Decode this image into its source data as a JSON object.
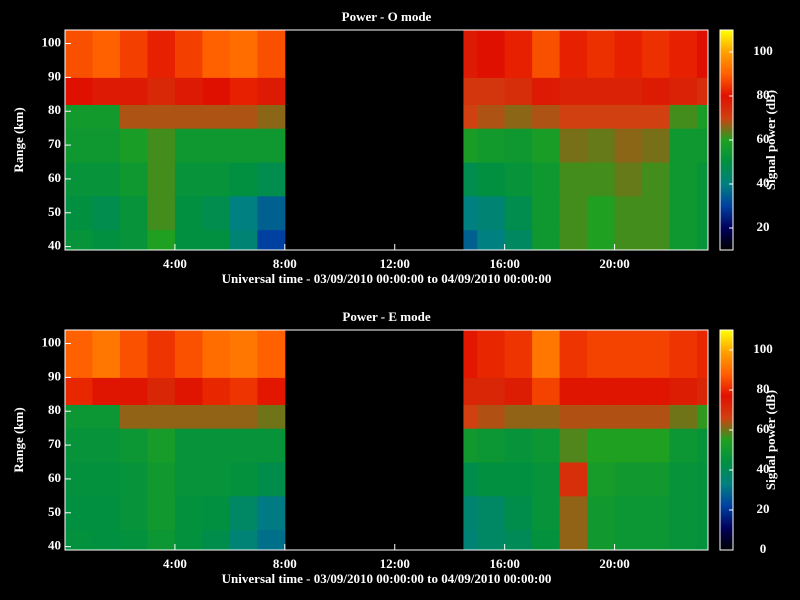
{
  "chart_data": [
    {
      "type": "heatmap",
      "title": "Power - O mode",
      "xlabel": "Universal time - 03/09/2010 00:00:00 to 04/09/2010 00:00:00",
      "ylabel": "Range (km)",
      "colorbar_label": "Signal power (dB)",
      "x_bins": [
        0,
        1,
        2,
        3,
        4,
        5,
        6,
        7,
        8,
        14.5,
        15,
        16,
        17,
        18,
        19,
        20,
        21,
        22,
        23,
        23.4
      ],
      "y_bins": [
        39,
        45,
        55,
        65,
        75,
        82,
        90,
        104
      ],
      "values": [
        [
          52,
          50,
          52,
          60,
          50,
          50,
          42,
          30,
          null,
          35,
          40,
          45,
          55,
          62,
          60,
          62,
          62,
          55,
          52
        ],
        [
          50,
          48,
          52,
          62,
          50,
          48,
          40,
          35,
          null,
          40,
          42,
          48,
          55,
          62,
          60,
          62,
          62,
          55,
          52
        ],
        [
          52,
          52,
          55,
          62,
          52,
          52,
          50,
          48,
          null,
          48,
          50,
          52,
          55,
          62,
          62,
          64,
          62,
          55,
          52
        ],
        [
          55,
          55,
          58,
          62,
          55,
          55,
          55,
          55,
          null,
          58,
          56,
          55,
          58,
          65,
          64,
          66,
          65,
          55,
          55
        ],
        [
          56,
          56,
          68,
          68,
          68,
          68,
          68,
          66,
          null,
          70,
          68,
          66,
          68,
          70,
          70,
          70,
          70,
          62,
          58
        ],
        [
          80,
          78,
          78,
          75,
          78,
          80,
          82,
          78,
          null,
          72,
          72,
          74,
          78,
          76,
          76,
          76,
          78,
          76,
          74
        ],
        [
          88,
          90,
          86,
          82,
          86,
          90,
          92,
          88,
          null,
          78,
          80,
          82,
          88,
          82,
          84,
          82,
          84,
          82,
          80
        ]
      ],
      "xlim": [
        0,
        23.4
      ],
      "ylim": [
        39,
        104
      ],
      "xticks": [
        {
          "value": 4,
          "label": "4:00"
        },
        {
          "value": 8,
          "label": "8:00"
        },
        {
          "value": 12,
          "label": "12:00"
        },
        {
          "value": 16,
          "label": "16:00"
        },
        {
          "value": 20,
          "label": "20:00"
        }
      ],
      "yticks": [
        40,
        50,
        60,
        70,
        80,
        90,
        100
      ],
      "zlim": [
        10,
        110
      ],
      "zticks": [
        20,
        40,
        60,
        80,
        100
      ],
      "colormap": [
        "#000000",
        "#00005a",
        "#0040a0",
        "#008080",
        "#009040",
        "#20a020",
        "#d04010",
        "#e01000",
        "#ff6000",
        "#ffa000",
        "#ffff00"
      ]
    },
    {
      "type": "heatmap",
      "title": "Power - E mode",
      "xlabel": "Universal time - 03/09/2010 00:00:00 to 04/09/2010 00:00:00",
      "ylabel": "Range (km)",
      "colorbar_label": "Signal power (dB)",
      "x_bins": [
        0,
        1,
        2,
        3,
        4,
        5,
        6,
        7,
        8,
        14.5,
        15,
        16,
        17,
        18,
        19,
        20,
        21,
        22,
        23,
        23.4
      ],
      "y_bins": [
        39,
        45,
        55,
        65,
        75,
        82,
        90,
        104
      ],
      "values": [
        [
          45,
          44,
          45,
          48,
          45,
          42,
          35,
          30,
          null,
          35,
          38,
          40,
          45,
          62,
          50,
          48,
          48,
          46,
          45
        ],
        [
          44,
          44,
          46,
          50,
          45,
          44,
          38,
          32,
          null,
          36,
          38,
          42,
          46,
          62,
          50,
          48,
          48,
          46,
          45
        ],
        [
          45,
          45,
          46,
          50,
          46,
          46,
          45,
          42,
          null,
          42,
          44,
          44,
          46,
          70,
          52,
          50,
          50,
          46,
          45
        ],
        [
          46,
          46,
          48,
          52,
          46,
          46,
          46,
          46,
          null,
          50,
          48,
          46,
          48,
          58,
          55,
          55,
          55,
          48,
          46
        ],
        [
          48,
          48,
          62,
          62,
          62,
          62,
          62,
          60,
          null,
          66,
          64,
          62,
          62,
          64,
          64,
          64,
          64,
          60,
          56
        ],
        [
          80,
          76,
          76,
          72,
          76,
          80,
          82,
          78,
          null,
          72,
          72,
          74,
          84,
          76,
          76,
          76,
          76,
          74,
          72
        ],
        [
          88,
          92,
          86,
          82,
          86,
          90,
          92,
          88,
          null,
          78,
          80,
          82,
          92,
          82,
          84,
          84,
          84,
          82,
          80
        ]
      ],
      "xlim": [
        0,
        23.4
      ],
      "ylim": [
        39,
        104
      ],
      "xticks": [
        {
          "value": 4,
          "label": "4:00"
        },
        {
          "value": 8,
          "label": "8:00"
        },
        {
          "value": 12,
          "label": "12:00"
        },
        {
          "value": 16,
          "label": "16:00"
        },
        {
          "value": 20,
          "label": "20:00"
        }
      ],
      "yticks": [
        40,
        50,
        60,
        70,
        80,
        90,
        100
      ],
      "zlim": [
        0,
        110
      ],
      "zticks": [
        0,
        20,
        40,
        60,
        80,
        100
      ],
      "colormap": [
        "#000000",
        "#00005a",
        "#0040a0",
        "#008080",
        "#009040",
        "#20a020",
        "#d04010",
        "#e01000",
        "#ff6000",
        "#ffa000",
        "#ffff00"
      ]
    }
  ]
}
